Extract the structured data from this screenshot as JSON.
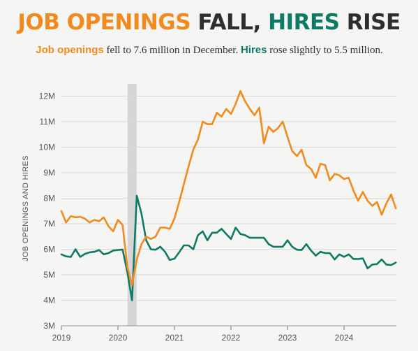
{
  "header": {
    "title_part1": "JOB OPENINGS",
    "title_part2": "FALL,",
    "title_part3": "HIRES",
    "title_part4": "RISE",
    "subtitle_kw1": "Job openings",
    "subtitle_text1": " fell to 7.6 million in December. ",
    "subtitle_kw2": "Hires",
    "subtitle_text2": " rose slightly to 5.5 million."
  },
  "colors": {
    "openings": "#f28a1e",
    "hires": "#0e7a66",
    "text": "#2e2e2e",
    "shade": "#d6d6d6",
    "grid": "#d9d9d9"
  },
  "chart_data": {
    "type": "line",
    "ylabel": "JOB OPENINGS AND HIRES",
    "ylim": [
      3,
      12.5
    ],
    "xlim": [
      2019.0,
      2024.95
    ],
    "y_ticks": [
      3,
      4,
      5,
      6,
      7,
      8,
      9,
      10,
      11,
      12
    ],
    "y_tick_labels": [
      "3M",
      "4M",
      "5M",
      "6M",
      "7M",
      "8M",
      "9M",
      "10M",
      "11M",
      "12M"
    ],
    "x_ticks": [
      2019,
      2020,
      2021,
      2022,
      2023,
      2024
    ],
    "x_tick_labels": [
      "2019",
      "2020",
      "2021",
      "2022",
      "2023",
      "2024"
    ],
    "grid": true,
    "shaded_period": [
      2020.17,
      2020.33
    ],
    "series": [
      {
        "name": "Job openings",
        "start": 2019.0,
        "step": 0.08333,
        "values": [
          7.5,
          7.05,
          7.3,
          7.25,
          7.27,
          7.2,
          7.05,
          7.15,
          7.1,
          7.25,
          6.9,
          6.7,
          7.15,
          6.95,
          5.3,
          4.6,
          5.6,
          6.2,
          6.5,
          6.4,
          6.5,
          6.85,
          6.85,
          6.8,
          7.2,
          7.85,
          8.55,
          9.25,
          9.9,
          10.3,
          11.0,
          10.9,
          10.9,
          11.35,
          11.2,
          11.5,
          11.3,
          11.7,
          12.2,
          11.8,
          11.5,
          11.25,
          11.55,
          10.15,
          10.8,
          10.6,
          10.75,
          11.0,
          10.4,
          9.85,
          9.65,
          9.9,
          9.3,
          9.15,
          8.8,
          9.35,
          9.3,
          8.7,
          8.95,
          8.9,
          8.75,
          8.8,
          8.3,
          7.9,
          8.25,
          7.9,
          7.7,
          7.85,
          7.35,
          7.8,
          8.15,
          7.6
        ]
      },
      {
        "name": "Hires",
        "start": 2019.0,
        "step": 0.08333,
        "values": [
          5.8,
          5.72,
          5.7,
          6.0,
          5.7,
          5.82,
          5.88,
          5.9,
          5.97,
          5.8,
          5.85,
          5.95,
          5.97,
          5.99,
          5.1,
          4.0,
          8.1,
          7.4,
          6.35,
          6.0,
          5.98,
          6.1,
          5.9,
          5.58,
          5.63,
          5.88,
          6.15,
          6.15,
          6.0,
          6.55,
          6.7,
          6.35,
          6.65,
          6.65,
          6.8,
          6.6,
          6.4,
          6.85,
          6.6,
          6.55,
          6.45,
          6.45,
          6.45,
          6.45,
          6.2,
          6.1,
          6.1,
          6.1,
          6.35,
          6.1,
          5.98,
          5.97,
          6.2,
          5.95,
          5.75,
          5.9,
          5.85,
          5.85,
          5.6,
          5.8,
          5.7,
          5.8,
          5.62,
          5.62,
          5.64,
          5.25,
          5.4,
          5.42,
          5.6,
          5.4,
          5.38,
          5.48
        ]
      }
    ]
  }
}
